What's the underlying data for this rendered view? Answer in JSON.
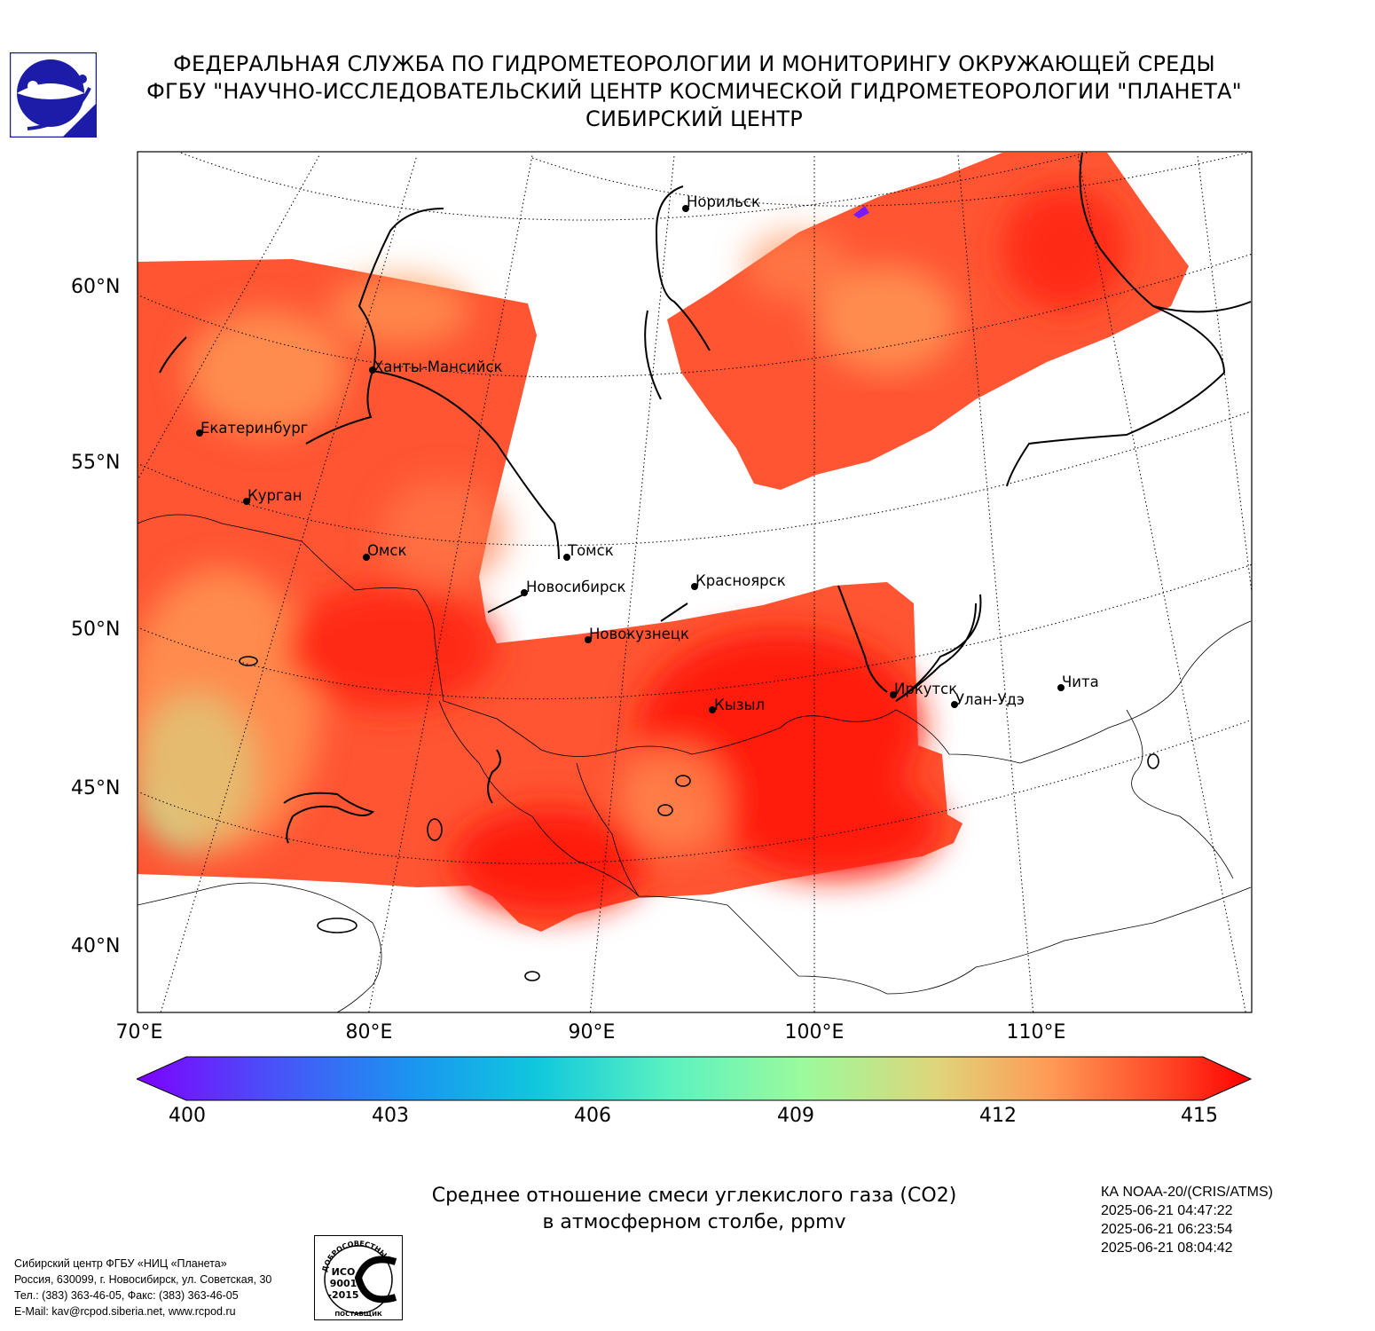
{
  "header": {
    "line1": "ФЕДЕРАЛЬНАЯ СЛУЖБА ПО ГИДРОМЕТЕОРОЛОГИИ И МОНИТОРИНГУ ОКРУЖАЮЩЕЙ СРЕДЫ",
    "line2": "ФГБУ \"НАУЧНО-ИССЛЕДОВАТЕЛЬСКИЙ ЦЕНТР КОСМИЧЕСКОЙ ГИДРОМЕТЕОРОЛОГИИ \"ПЛАНЕТА\"",
    "line3": "СИБИРСКИЙ ЦЕНТР"
  },
  "logo_icon": "planeta-logo-icon",
  "map": {
    "lat_labels": [
      "60°N",
      "55°N",
      "50°N",
      "45°N",
      "40°N"
    ],
    "lon_labels": [
      "70°E",
      "80°E",
      "90°E",
      "100°E",
      "110°E"
    ],
    "cities": [
      {
        "name": "Норильск"
      },
      {
        "name": "Ханты-Мансийск"
      },
      {
        "name": "Екатеринбург"
      },
      {
        "name": "Курган"
      },
      {
        "name": "Омск"
      },
      {
        "name": "Томск"
      },
      {
        "name": "Новосибирск"
      },
      {
        "name": "Красноярск"
      },
      {
        "name": "Новокузнецк"
      },
      {
        "name": "Иркутск"
      },
      {
        "name": "Улан-Удэ"
      },
      {
        "name": "Чита"
      },
      {
        "name": "Кызыл"
      }
    ],
    "colors": {
      "high": "#ff1a10",
      "mid": "#ff5533",
      "low": "#ff9a55",
      "min": "#9dfaa8",
      "land_border": "#000000"
    }
  },
  "colorbar": {
    "min": 400,
    "max": 415,
    "ticks": [
      "400",
      "403",
      "406",
      "409",
      "412",
      "415"
    ],
    "colormap": "rainbow",
    "extend": "both"
  },
  "caption": {
    "line1": "Среднее отношение смеси углекислого газа (CO2)",
    "line2": "в атмосферном столбе, ppmv"
  },
  "meta": {
    "satellite": "КА NOAA-20/(CRIS/ATMS)",
    "times": [
      "2025-06-21 04:47:22",
      "2025-06-21 06:23:54",
      "2025-06-21 08:04:42"
    ]
  },
  "contact": {
    "line1": "Сибирский центр ФГБУ «НИЦ «Планета»",
    "line2": "Россия, 630099, г. Новосибирск, ул. Советская, 30",
    "line3": "Тел.: (383) 363-46-05, Факс: (383) 363-46-05",
    "line4": "E-Mail: kav@rcpod.siberia.net, www.rcpod.ru"
  },
  "iso_badge": {
    "top_text": "ДОБРОСОВЕСТНЫЙ",
    "line1": "ИСО",
    "line2": "9001",
    "line3": "-2015",
    "bottom_text": "ПОСТАВЩИК"
  }
}
